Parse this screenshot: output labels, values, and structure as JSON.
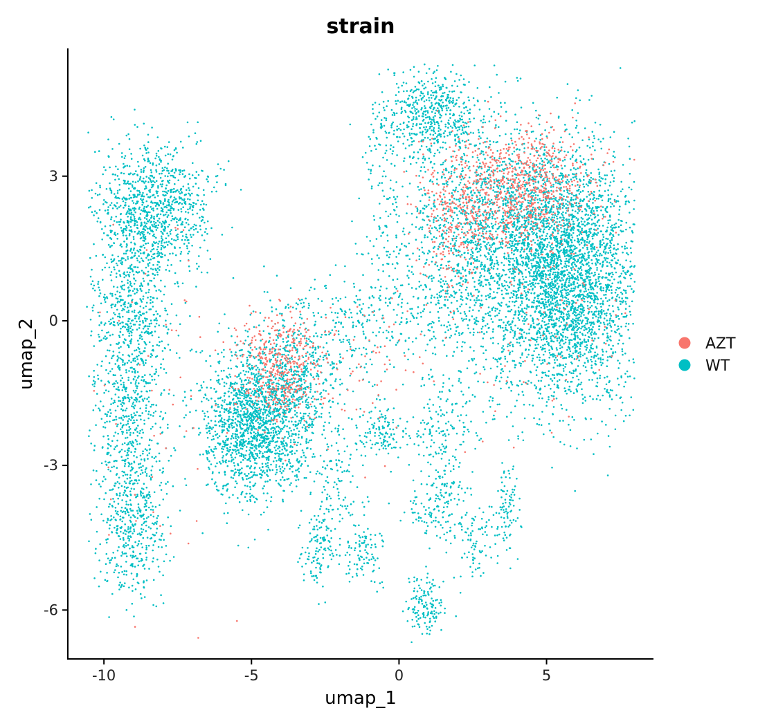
{
  "chart_data": {
    "type": "scatter",
    "title": "strain",
    "xlabel": "umap_1",
    "ylabel": "umap_2",
    "xlim": [
      -11.2,
      8.6
    ],
    "ylim": [
      -7.0,
      5.65
    ],
    "xticks": [
      -10,
      -5,
      0,
      5
    ],
    "xtick_labels": [
      "-10",
      "-5",
      "0",
      "5"
    ],
    "yticks": [
      -6,
      -3,
      0,
      3
    ],
    "ytick_labels": [
      "-6",
      "-3",
      "0",
      "3"
    ],
    "grid": false,
    "legend_position": "right",
    "series": [
      {
        "name": "AZT",
        "color": "#F8766D",
        "clusters": [
          {
            "cx": 4.2,
            "cy": 2.8,
            "sx": 1.4,
            "sy": 0.7,
            "w": 700
          },
          {
            "cx": 2.0,
            "cy": 2.2,
            "sx": 0.8,
            "sy": 1.0,
            "w": 300
          },
          {
            "cx": -4.0,
            "cy": -1.0,
            "sx": 0.9,
            "sy": 0.7,
            "w": 420
          },
          {
            "cx": -8.0,
            "cy": -2.0,
            "sx": 1.5,
            "sy": 2.5,
            "w": 50
          },
          {
            "cx": 5.0,
            "cy": 0.3,
            "sx": 1.8,
            "sy": 1.5,
            "w": 80
          },
          {
            "cx": -1.0,
            "cy": -1.0,
            "sx": 1.2,
            "sy": 1.0,
            "w": 60
          }
        ]
      },
      {
        "name": "WT",
        "color": "#00BFC4",
        "clusters": [
          {
            "cx": 5.6,
            "cy": 0.8,
            "sx": 1.6,
            "sy": 1.5,
            "w": 3200
          },
          {
            "cx": 4.2,
            "cy": 2.2,
            "sx": 1.8,
            "sy": 1.1,
            "w": 1100
          },
          {
            "cx": 1.2,
            "cy": 4.3,
            "sx": 1.0,
            "sy": 0.55,
            "w": 550
          },
          {
            "cx": 2.0,
            "cy": 1.2,
            "sx": 1.2,
            "sy": 1.5,
            "w": 700
          },
          {
            "cx": -0.5,
            "cy": 2.5,
            "sx": 0.5,
            "sy": 1.6,
            "w": 160
          },
          {
            "cx": -1.5,
            "cy": 0.0,
            "sx": 1.8,
            "sy": 0.5,
            "w": 250
          },
          {
            "cx": -5.0,
            "cy": -2.2,
            "sx": 1.0,
            "sy": 0.9,
            "w": 1400
          },
          {
            "cx": -3.5,
            "cy": -1.5,
            "sx": 1.2,
            "sy": 0.9,
            "w": 700
          },
          {
            "cx": -8.3,
            "cy": 2.4,
            "sx": 1.1,
            "sy": 0.8,
            "w": 900
          },
          {
            "cx": -9.0,
            "cy": 0.5,
            "sx": 0.8,
            "sy": 1.2,
            "w": 600
          },
          {
            "cx": -9.2,
            "cy": -2.0,
            "sx": 0.7,
            "sy": 1.3,
            "w": 550
          },
          {
            "cx": -9.0,
            "cy": -4.3,
            "sx": 0.7,
            "sy": 0.9,
            "w": 400
          },
          {
            "cx": -0.5,
            "cy": -2.3,
            "sx": 0.5,
            "sy": 0.3,
            "w": 120
          },
          {
            "cx": 1.5,
            "cy": -2.2,
            "sx": 0.6,
            "sy": 0.5,
            "w": 110
          },
          {
            "cx": 1.5,
            "cy": -3.3,
            "sx": 0.5,
            "sy": 0.5,
            "w": 90
          },
          {
            "cx": 3.7,
            "cy": -3.8,
            "sx": 0.2,
            "sy": 0.5,
            "w": 80
          },
          {
            "cx": -2.7,
            "cy": -4.7,
            "sx": 0.35,
            "sy": 0.5,
            "w": 110
          },
          {
            "cx": -1.2,
            "cy": -4.8,
            "sx": 0.4,
            "sy": 0.4,
            "w": 100
          },
          {
            "cx": 0.9,
            "cy": -5.9,
            "sx": 0.4,
            "sy": 0.35,
            "w": 140
          },
          {
            "cx": 2.6,
            "cy": -4.6,
            "sx": 0.6,
            "sy": 0.5,
            "w": 100
          },
          {
            "cx": 1.2,
            "cy": -4.0,
            "sx": 0.6,
            "sy": 0.3,
            "w": 80
          },
          {
            "cx": -2.2,
            "cy": -3.6,
            "sx": 0.5,
            "sy": 0.6,
            "w": 90
          }
        ]
      }
    ]
  }
}
